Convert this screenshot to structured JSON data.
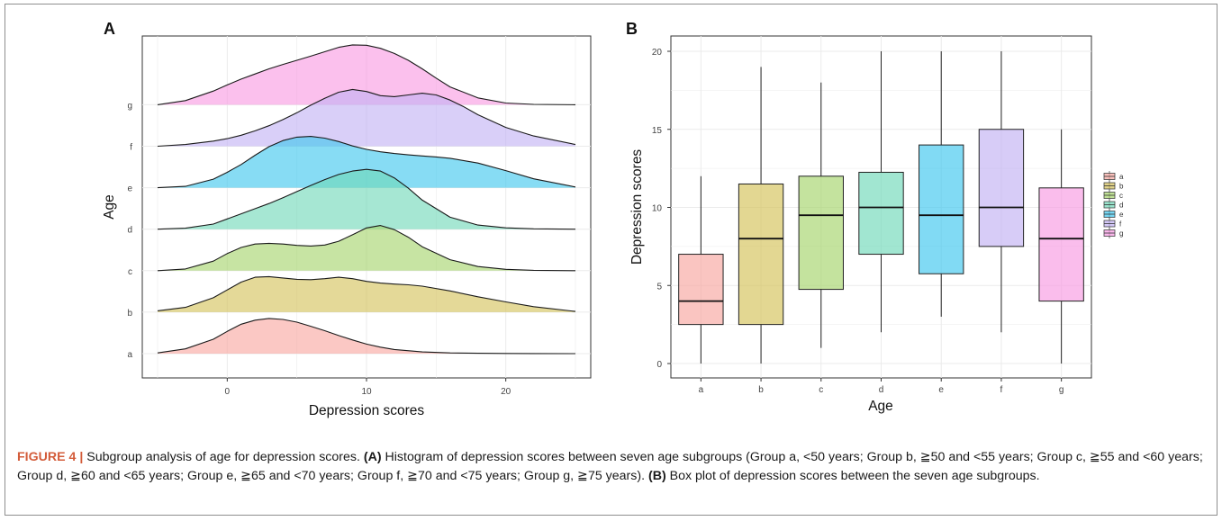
{
  "panel_a_letter": "A",
  "panel_b_letter": "B",
  "chart_data": [
    {
      "type": "area",
      "panel": "A",
      "kind": "ridgeline density",
      "xlabel": "Depression scores",
      "ylabel": "Age",
      "xlim": [
        -5,
        25
      ],
      "x_ticks": [
        "0",
        "10",
        "20"
      ],
      "grid": true,
      "legend": "none",
      "series": [
        {
          "name": "a",
          "color": "#f8a6a0",
          "x": [
            -5,
            -3,
            -1,
            0,
            1,
            2,
            3,
            4,
            5,
            6,
            7,
            8,
            9,
            10,
            11,
            12,
            14,
            16,
            18,
            20,
            22,
            25
          ],
          "y": [
            0.02,
            0.14,
            0.42,
            0.65,
            0.86,
            0.98,
            1.03,
            1.0,
            0.92,
            0.8,
            0.67,
            0.53,
            0.4,
            0.28,
            0.19,
            0.12,
            0.05,
            0.02,
            0.01,
            0.005,
            0.002,
            0.0
          ]
        },
        {
          "name": "b",
          "color": "#d4c158",
          "x": [
            -5,
            -3,
            -1,
            0,
            1,
            2,
            3,
            4,
            5,
            6,
            7,
            8,
            9,
            10,
            11,
            12,
            13,
            14,
            16,
            18,
            20,
            22,
            25
          ],
          "y": [
            0.04,
            0.14,
            0.42,
            0.65,
            0.88,
            1.02,
            1.04,
            1.0,
            0.96,
            0.95,
            0.98,
            1.02,
            0.98,
            0.9,
            0.85,
            0.82,
            0.8,
            0.76,
            0.62,
            0.45,
            0.3,
            0.16,
            0.02
          ]
        },
        {
          "name": "c",
          "color": "#a5d46a",
          "x": [
            -5,
            -3,
            -1,
            0,
            1,
            2,
            3,
            4,
            5,
            6,
            7,
            8,
            9,
            10,
            11,
            12,
            13,
            14,
            16,
            18,
            20,
            22,
            25
          ],
          "y": [
            0.0,
            0.05,
            0.28,
            0.5,
            0.68,
            0.78,
            0.8,
            0.78,
            0.74,
            0.72,
            0.75,
            0.86,
            1.05,
            1.25,
            1.32,
            1.2,
            0.98,
            0.7,
            0.32,
            0.12,
            0.04,
            0.01,
            0.0
          ]
        },
        {
          "name": "d",
          "color": "#6fd9b8",
          "x": [
            -5,
            -3,
            -1,
            0,
            1,
            2,
            3,
            4,
            5,
            6,
            7,
            8,
            9,
            10,
            11,
            12,
            13,
            14,
            16,
            18,
            20,
            22,
            25
          ],
          "y": [
            0.0,
            0.03,
            0.15,
            0.3,
            0.45,
            0.6,
            0.75,
            0.92,
            1.1,
            1.28,
            1.45,
            1.6,
            1.7,
            1.75,
            1.7,
            1.5,
            1.2,
            0.85,
            0.35,
            0.12,
            0.04,
            0.01,
            0.0
          ]
        },
        {
          "name": "e",
          "color": "#3dc6ee",
          "x": [
            -5,
            -3,
            -1,
            0,
            1,
            2,
            3,
            4,
            5,
            6,
            7,
            8,
            9,
            10,
            11,
            12,
            13,
            14,
            15,
            16,
            18,
            20,
            22,
            25
          ],
          "y": [
            0.0,
            0.04,
            0.25,
            0.45,
            0.68,
            0.95,
            1.2,
            1.38,
            1.48,
            1.5,
            1.45,
            1.35,
            1.22,
            1.12,
            1.05,
            1.0,
            0.96,
            0.93,
            0.9,
            0.86,
            0.72,
            0.5,
            0.26,
            0.02
          ]
        },
        {
          "name": "f",
          "color": "#c2b1f3",
          "x": [
            -5,
            -3,
            -1,
            0,
            1,
            2,
            3,
            4,
            5,
            6,
            7,
            8,
            9,
            10,
            11,
            12,
            13,
            14,
            15,
            16,
            17,
            18,
            20,
            22,
            25
          ],
          "y": [
            0.0,
            0.05,
            0.15,
            0.22,
            0.32,
            0.45,
            0.6,
            0.78,
            0.98,
            1.2,
            1.4,
            1.58,
            1.66,
            1.6,
            1.48,
            1.45,
            1.5,
            1.55,
            1.5,
            1.35,
            1.15,
            0.92,
            0.55,
            0.3,
            0.05
          ]
        },
        {
          "name": "g",
          "color": "#f899e2",
          "x": [
            -5,
            -3,
            -1,
            0,
            1,
            2,
            3,
            4,
            5,
            6,
            7,
            8,
            9,
            10,
            11,
            12,
            13,
            14,
            15,
            16,
            18,
            20,
            22,
            25
          ],
          "y": [
            0.0,
            0.12,
            0.4,
            0.58,
            0.75,
            0.9,
            1.05,
            1.18,
            1.3,
            1.42,
            1.55,
            1.68,
            1.75,
            1.74,
            1.65,
            1.5,
            1.3,
            1.05,
            0.78,
            0.52,
            0.2,
            0.05,
            0.01,
            0.0
          ]
        }
      ]
    },
    {
      "type": "box",
      "panel": "B",
      "xlabel": "Age",
      "ylabel": "Depression scores",
      "ylim": [
        0,
        20
      ],
      "y_ticks": [
        "0",
        "5",
        "10",
        "15",
        "20"
      ],
      "grid": true,
      "legend": "right",
      "categories": [
        "a",
        "b",
        "c",
        "d",
        "e",
        "f",
        "g"
      ],
      "boxes": [
        {
          "name": "a",
          "color": "#f8a6a0",
          "min": 0,
          "q1": 2.5,
          "median": 4,
          "q3": 7,
          "max": 12
        },
        {
          "name": "b",
          "color": "#d4c158",
          "min": 0,
          "q1": 2.5,
          "median": 8,
          "q3": 11.5,
          "max": 19
        },
        {
          "name": "c",
          "color": "#a5d46a",
          "min": 1,
          "q1": 4.75,
          "median": 9.5,
          "q3": 12,
          "max": 18
        },
        {
          "name": "d",
          "color": "#6fd9b8",
          "min": 2,
          "q1": 7,
          "median": 10,
          "q3": 12.25,
          "max": 20
        },
        {
          "name": "e",
          "color": "#3dc6ee",
          "min": 3,
          "q1": 5.75,
          "median": 9.5,
          "q3": 14,
          "max": 20
        },
        {
          "name": "f",
          "color": "#c2b1f3",
          "min": 2,
          "q1": 7.5,
          "median": 10,
          "q3": 15,
          "max": 20
        },
        {
          "name": "g",
          "color": "#f899e2",
          "min": 0,
          "q1": 4,
          "median": 8,
          "q3": 11.25,
          "max": 15
        }
      ]
    }
  ],
  "caption": {
    "figure_label": "FIGURE 4 |",
    "intro": " Subgroup analysis of age for depression scores. ",
    "a_marker": "(A)",
    "a_text": " Histogram of depression scores between seven age subgroups (Group a, <50 years; Group b, ≧50 and <55 years; Group c, ≧55 and <60 years; Group d, ≧60 and <65 years; Group e, ≧65 and <70 years; Group f, ≧70 and <75 years; Group g, ≧75 years). ",
    "b_marker": "(B)",
    "b_text": " Box plot of depression scores between the seven age subgroups."
  }
}
